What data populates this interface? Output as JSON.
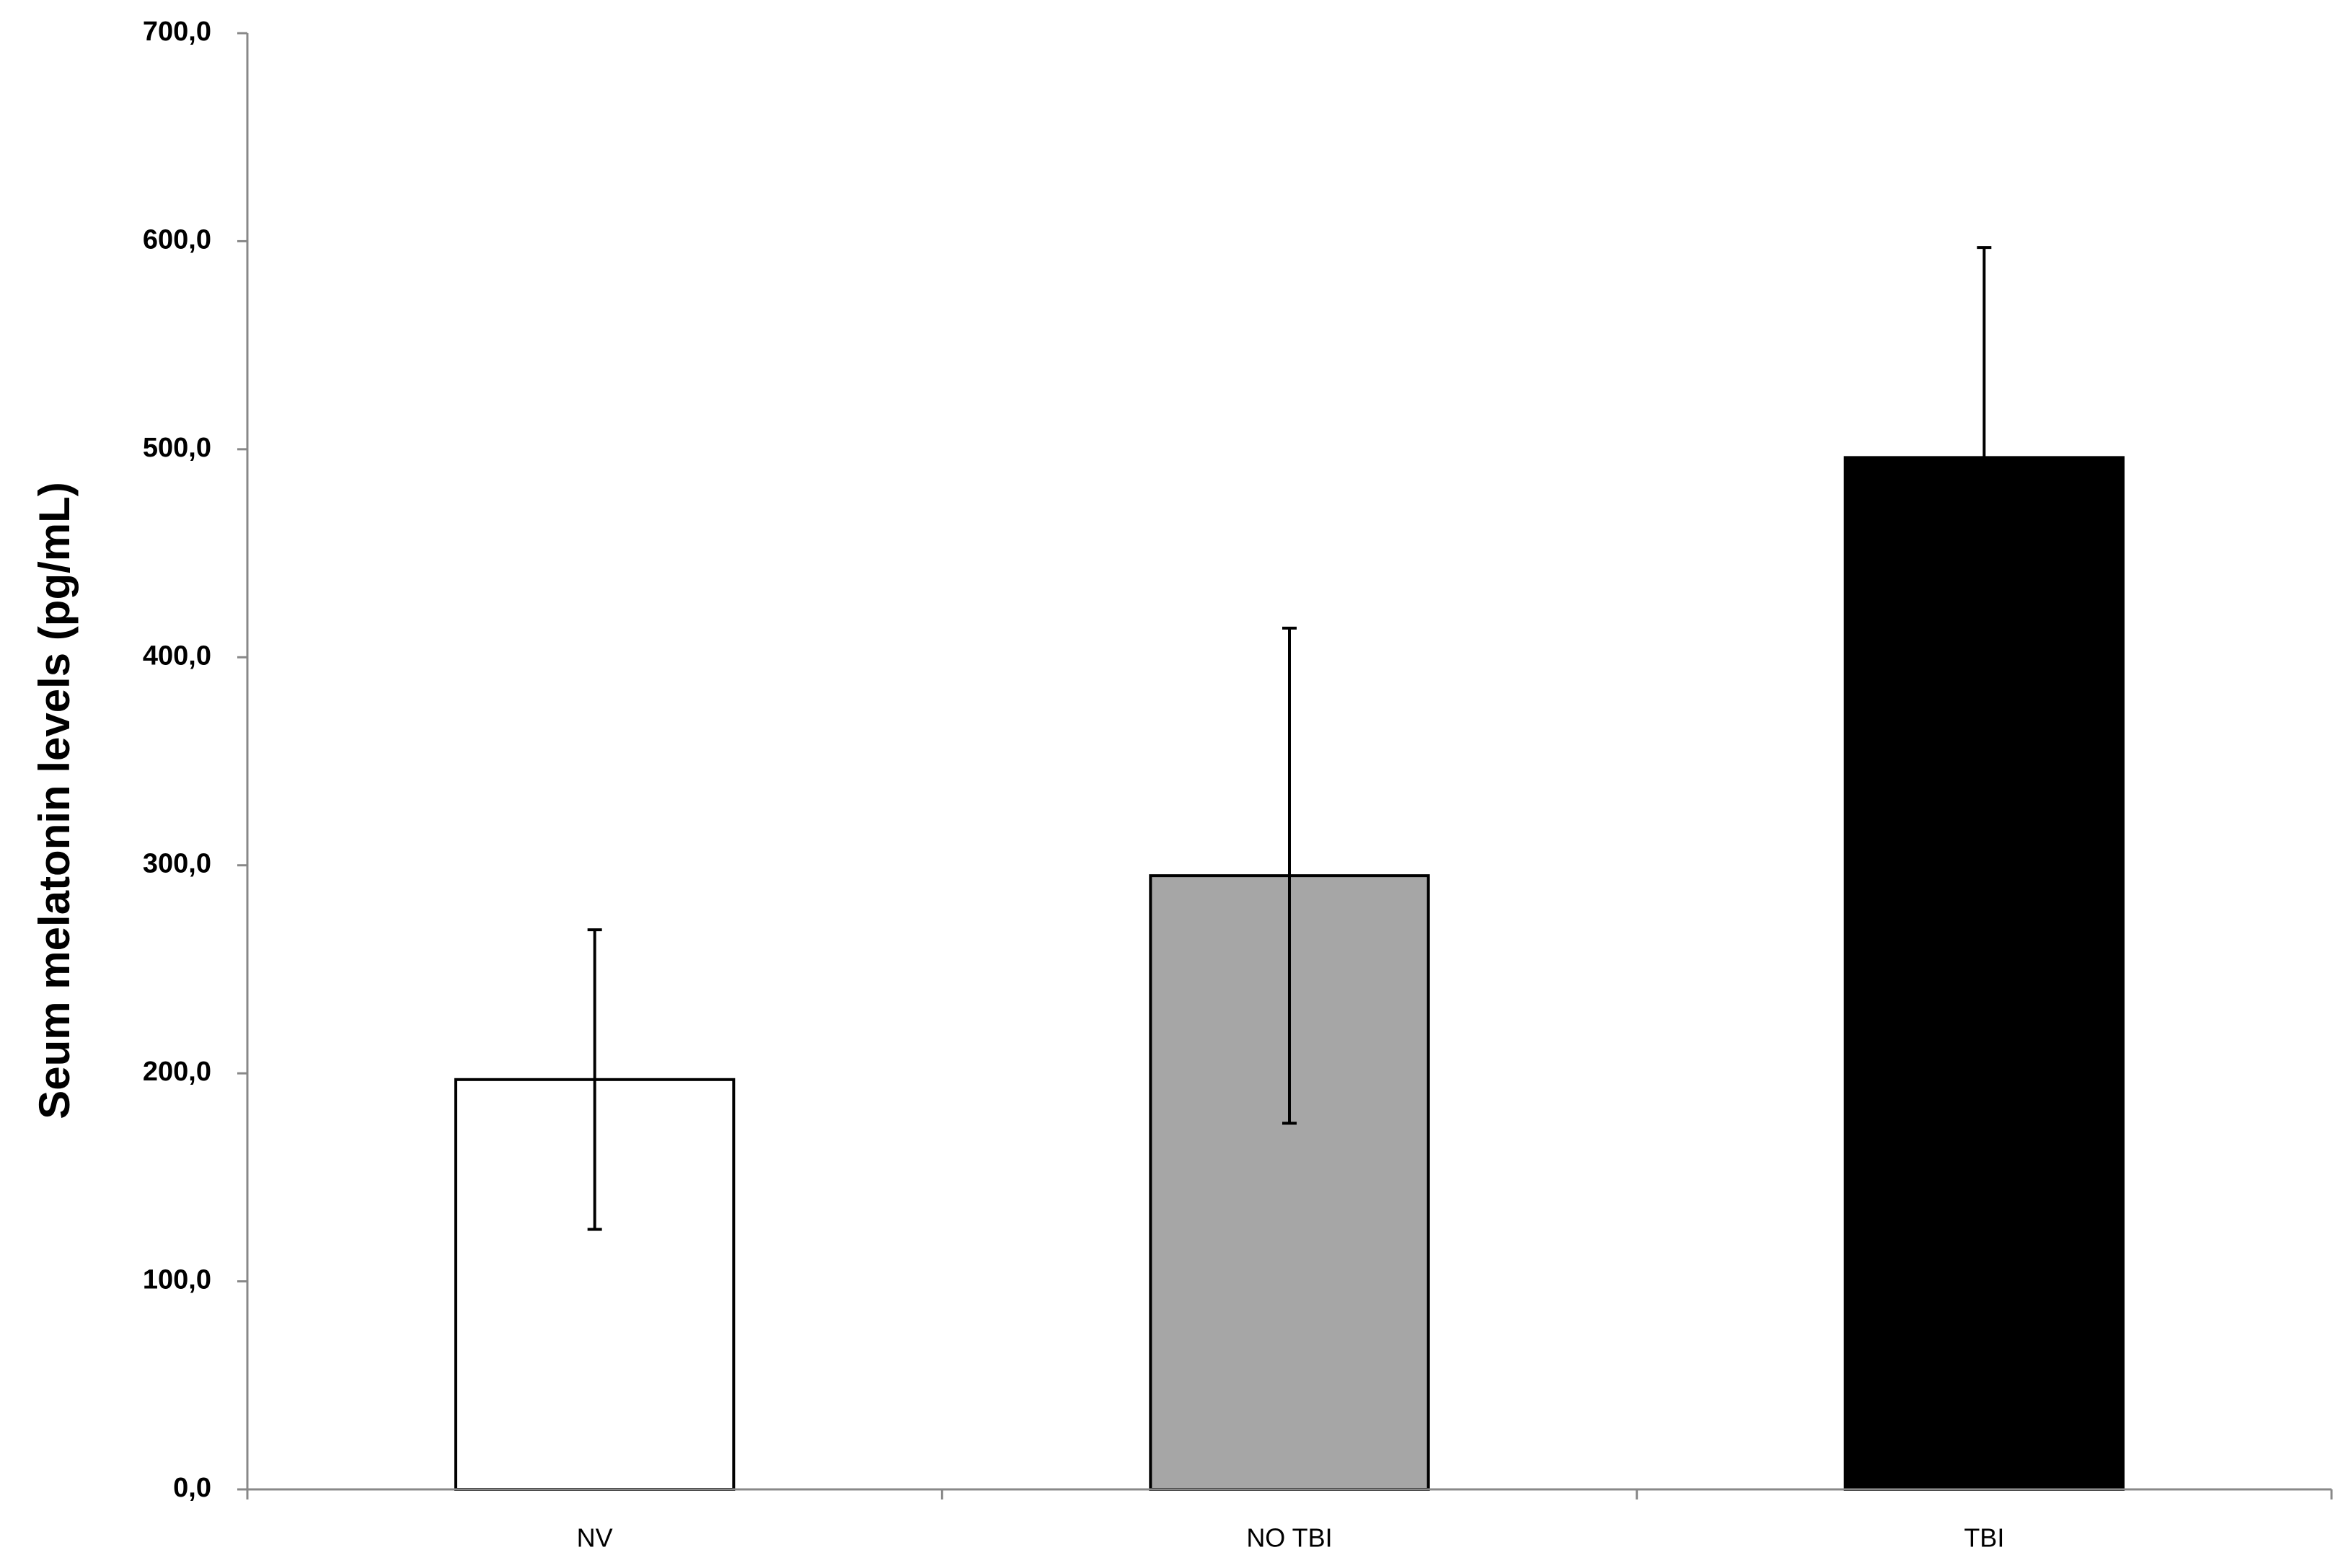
{
  "chart_data": {
    "type": "bar",
    "y_label": "Seum melatonin levels (pg/mL)",
    "categories": [
      "NV",
      "NO TBI",
      "TBI"
    ],
    "values": [
      197,
      295,
      496
    ],
    "errors": [
      72,
      119,
      101
    ],
    "colors": [
      "#ffffff",
      "#a6a6a6",
      "#000000"
    ],
    "ylim": [
      0,
      700
    ],
    "yticks": [
      {
        "value": 0,
        "label": "0,0"
      },
      {
        "value": 100,
        "label": "100,0"
      },
      {
        "value": 200,
        "label": "200,0"
      },
      {
        "value": 300,
        "label": "300,0"
      },
      {
        "value": 400,
        "label": "400,0"
      },
      {
        "value": 500,
        "label": "500,0"
      },
      {
        "value": 600,
        "label": "600,0"
      },
      {
        "value": 700,
        "label": "700,0"
      }
    ],
    "grid": false
  }
}
